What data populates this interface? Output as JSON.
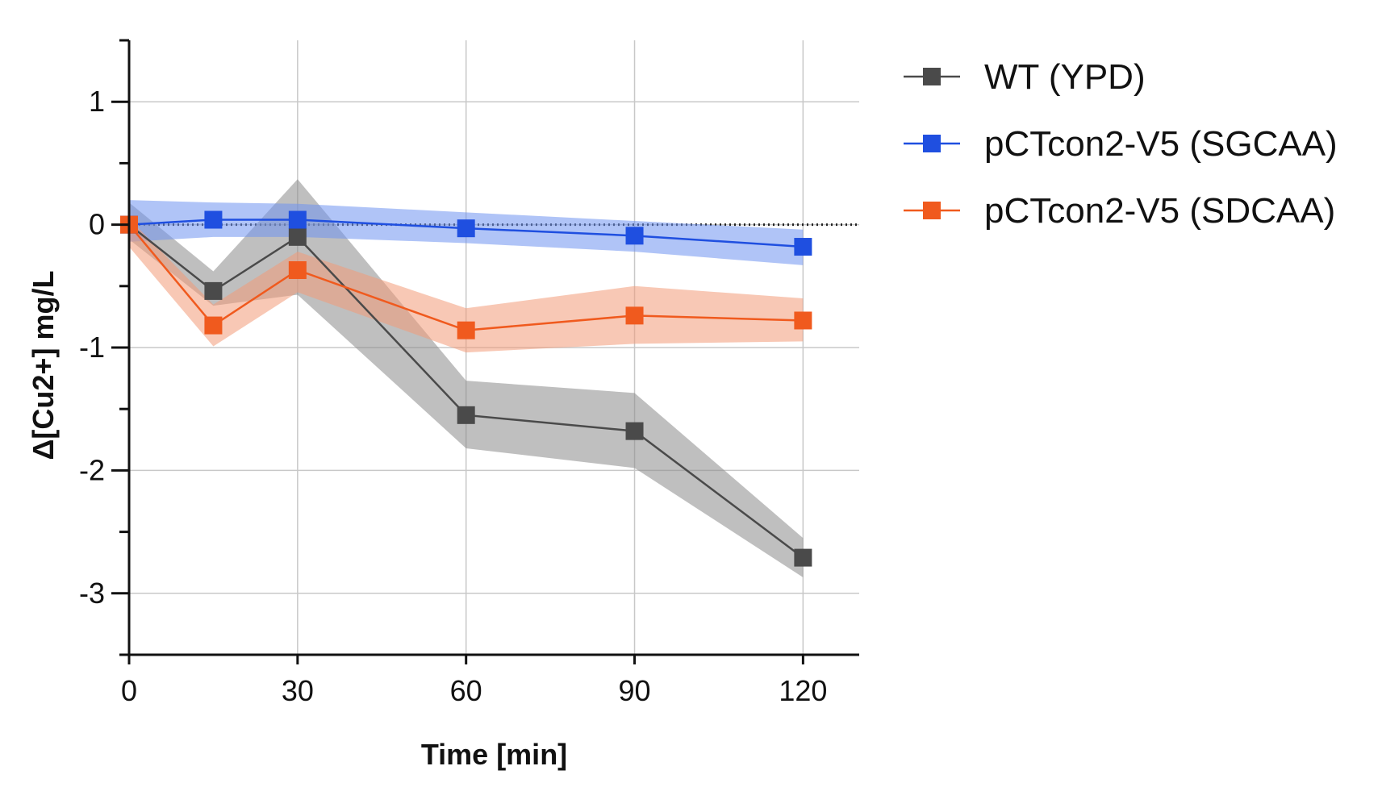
{
  "chart_data": {
    "type": "line",
    "title": "",
    "xlabel": "Time [min]",
    "ylabel": "Δ[Cu2+] mg/L",
    "xlim": [
      0,
      130
    ],
    "ylim": [
      -3.5,
      1.5
    ],
    "x_ticks": [
      0,
      30,
      60,
      90,
      120
    ],
    "x_tick_labels": [
      "0",
      "30",
      "60",
      "90",
      "120"
    ],
    "y_ticks": [
      1,
      0,
      -1,
      -2,
      -3
    ],
    "y_tick_labels": [
      "1",
      "0",
      "-1",
      "-2",
      "-3"
    ],
    "grid": true,
    "reference_line_y": 0,
    "legend_position": "right",
    "marker": "square",
    "x": [
      0,
      15,
      30,
      60,
      90,
      120
    ],
    "series": [
      {
        "name": "WT (YPD)",
        "color": "#4a4a4a",
        "band_color": "#8a8a8a",
        "values": [
          0.0,
          -0.54,
          -0.1,
          -1.55,
          -1.68,
          -2.71
        ],
        "upper": [
          0.18,
          -0.38,
          0.37,
          -1.27,
          -1.37,
          -2.55
        ],
        "lower": [
          -0.12,
          -0.66,
          -0.57,
          -1.82,
          -1.98,
          -2.87
        ]
      },
      {
        "name": "pCTcon2-V5 (SGCAA)",
        "color": "#1f4fe0",
        "band_color": "#6f93f0",
        "values": [
          0.0,
          0.04,
          0.04,
          -0.03,
          -0.09,
          -0.18
        ],
        "upper": [
          0.2,
          0.18,
          0.17,
          0.1,
          0.03,
          -0.04
        ],
        "lower": [
          -0.14,
          -0.1,
          -0.1,
          -0.15,
          -0.22,
          -0.33
        ]
      },
      {
        "name": "pCTcon2-V5 (SDCAA)",
        "color": "#f05a1e",
        "band_color": "#f29a78",
        "values": [
          0.0,
          -0.82,
          -0.37,
          -0.86,
          -0.74,
          -0.78
        ],
        "upper": [
          0.05,
          -0.65,
          -0.22,
          -0.68,
          -0.5,
          -0.6
        ],
        "lower": [
          -0.18,
          -0.99,
          -0.55,
          -1.04,
          -0.97,
          -0.95
        ]
      }
    ]
  }
}
